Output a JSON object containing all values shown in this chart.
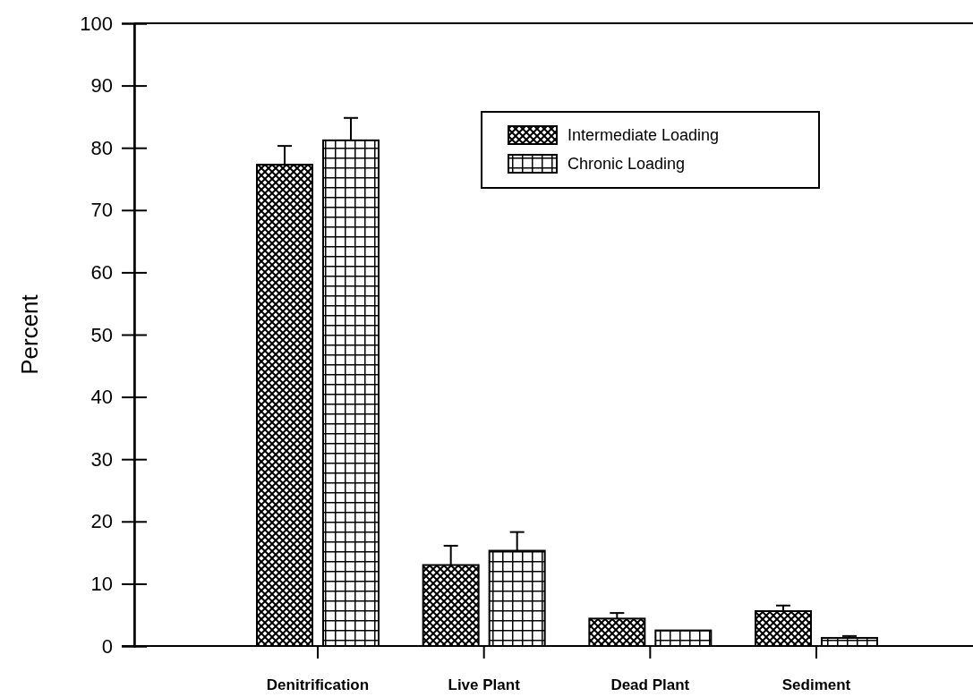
{
  "chart_data": {
    "type": "bar",
    "ylabel": "Percent",
    "categories": [
      "Denitrification",
      "Live Plant",
      "Dead Plant",
      "Sediment"
    ],
    "series": [
      {
        "name": "Intermediate Loading",
        "color": "#000000",
        "values": [
          77.3,
          13.0,
          4.4,
          5.6
        ],
        "errors": [
          [
            77.3,
            80.3
          ],
          [
            13.0,
            16.1
          ],
          [
            4.4,
            5.3
          ],
          [
            5.6,
            6.5
          ]
        ]
      },
      {
        "name": "Chronic Loading",
        "color": "#000000",
        "values": [
          81.2,
          15.3,
          2.5,
          1.3
        ],
        "errors": [
          [
            81.2,
            84.8
          ],
          [
            15.3,
            18.3
          ],
          null,
          [
            1.3,
            1.6
          ]
        ]
      }
    ],
    "ylim": [
      0,
      100
    ],
    "yticks": [
      0,
      10,
      20,
      30,
      40,
      50,
      60,
      70,
      80,
      90,
      100
    ],
    "grid": false,
    "legend": "top right"
  }
}
